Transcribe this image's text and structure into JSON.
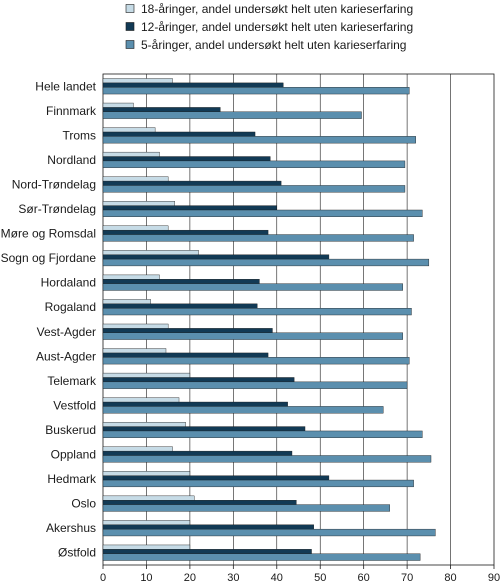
{
  "chart_data": {
    "type": "bar",
    "orientation": "horizontal",
    "categories": [
      "Hele landet",
      "Finnmark",
      "Troms",
      "Nordland",
      "Nord-Trøndelag",
      "Sør-Trøndelag",
      "Møre og Romsdal",
      "Sogn og Fjordane",
      "Hordaland",
      "Rogaland",
      "Vest-Agder",
      "Aust-Agder",
      "Telemark",
      "Vestfold",
      "Buskerud",
      "Oppland",
      "Hedmark",
      "Oslo",
      "Akershus",
      "Østfold"
    ],
    "series": [
      {
        "name": "18-åringer, andel undersøkt helt uten karieserfaring",
        "color": "#c6dbe6",
        "values": [
          16,
          7,
          12,
          13,
          15,
          16.5,
          15,
          22,
          13,
          11,
          15,
          14.5,
          20,
          17.5,
          19,
          16,
          20,
          21,
          20,
          20
        ]
      },
      {
        "name": "12-åringer, andel undersøkt helt uten karieserfaring",
        "color": "#123a55",
        "values": [
          41.5,
          27,
          35,
          38.5,
          41,
          40,
          38,
          52,
          36,
          35.5,
          39,
          38,
          44,
          42.5,
          46.5,
          43.5,
          52,
          44.5,
          48.5,
          48
        ]
      },
      {
        "name": "5-åringer, andel undersøkt helt uten karieserfaring",
        "color": "#5b8fae",
        "values": [
          70.5,
          59.5,
          72,
          69.5,
          69.5,
          73.5,
          71.5,
          75,
          69,
          71,
          69,
          70.5,
          70,
          64.5,
          73.5,
          75.5,
          71.5,
          66,
          76.5,
          73
        ]
      }
    ],
    "xlim": [
      0,
      90
    ],
    "xticks": [
      "0",
      "10",
      "20",
      "30",
      "40",
      "50",
      "60",
      "70",
      "80",
      "90"
    ],
    "grid": "vertical",
    "legend_position": "top-left"
  }
}
